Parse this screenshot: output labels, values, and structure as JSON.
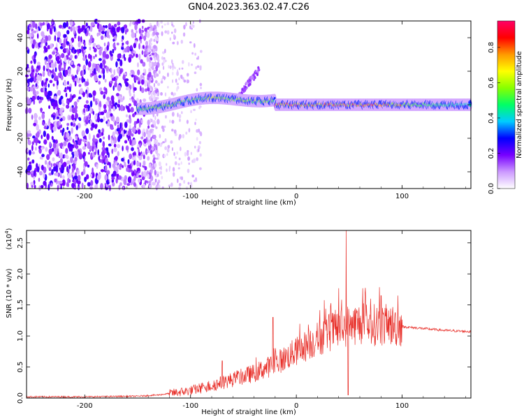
{
  "title": "GN04.2023.363.02.47.C26",
  "chart_data": [
    {
      "type": "heatmap",
      "xlabel": "Height of straight line (km)",
      "ylabel": "Frequency (Hz)",
      "xlim": [
        -255,
        165
      ],
      "ylim": [
        -50,
        50
      ],
      "xticks": [
        -200,
        -100,
        0,
        100
      ],
      "yticks": [
        -40,
        -20,
        0,
        20,
        40
      ],
      "colorbar": {
        "label": "Normalized spectral amplitude",
        "range": [
          0,
          0.95
        ],
        "ticks": [
          0.0,
          0.2,
          0.4,
          0.6,
          0.8
        ],
        "colors": [
          "#ffffff",
          "#cc99ff",
          "#7700ff",
          "#0000ff",
          "#00ccff",
          "#00ff66",
          "#88ff00",
          "#ffff00",
          "#ff9900",
          "#ff0000",
          "#ff0066"
        ]
      },
      "features": [
        {
          "name": "noise",
          "x_range": [
            -255,
            -130
          ],
          "y_range": [
            -50,
            50
          ],
          "amplitude": 0.15
        },
        {
          "name": "signal-track",
          "x_range": [
            -150,
            165
          ],
          "center_frequency": 0,
          "amplitude": 0.9
        },
        {
          "name": "drift-branch",
          "x_range": [
            -55,
            -35
          ],
          "y_range": [
            5,
            22
          ],
          "amplitude": 0.15
        }
      ]
    },
    {
      "type": "line",
      "xlabel": "Height of straight line (km)",
      "ylabel": "SNR (10 * v/v)",
      "scale_label": "(x10",
      "scale_exponent": "4",
      "xlim": [
        -255,
        165
      ],
      "ylim": [
        0,
        2.7
      ],
      "xticks": [
        -200,
        -100,
        0,
        100
      ],
      "yticks": [
        0.0,
        0.5,
        1.0,
        1.5,
        2.0,
        2.5
      ],
      "color": "#e8302a",
      "envelope": {
        "x": [
          -255,
          -200,
          -150,
          -130,
          -100,
          -80,
          -60,
          -40,
          -20,
          0,
          20,
          30,
          40,
          50,
          60,
          70,
          80,
          90,
          100,
          120,
          140,
          165
        ],
        "y": [
          0.02,
          0.02,
          0.03,
          0.05,
          0.12,
          0.2,
          0.3,
          0.4,
          0.55,
          0.75,
          0.95,
          1.05,
          1.12,
          1.18,
          1.2,
          1.18,
          1.18,
          1.17,
          1.15,
          1.12,
          1.09,
          1.07
        ]
      },
      "spikes": [
        {
          "x": -70,
          "y": 0.6
        },
        {
          "x": -22,
          "y": 1.3
        },
        {
          "x": 47,
          "y": 2.7
        },
        {
          "x": 49,
          "y": 0.05
        },
        {
          "x": 80,
          "y": 1.65
        },
        {
          "x": 96,
          "y": 1.65
        }
      ]
    }
  ]
}
